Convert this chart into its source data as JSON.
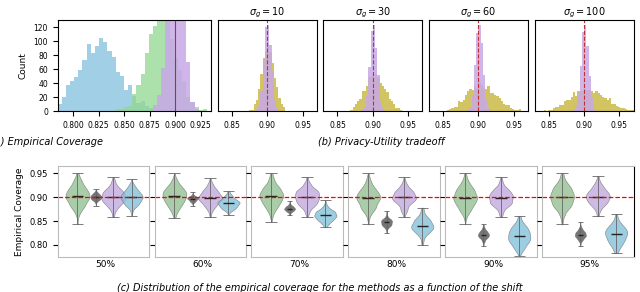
{
  "fig_width": 6.4,
  "fig_height": 2.92,
  "dpi": 100,
  "panel_a": {
    "ylabel": "Count",
    "xlim": [
      0.785,
      0.935
    ],
    "ylim": [
      0,
      130
    ],
    "yticks": [
      0,
      20,
      40,
      60,
      80,
      100,
      120
    ],
    "xticks": [
      0.8,
      0.825,
      0.85,
      0.875,
      0.9,
      0.925
    ],
    "blue_mean": 0.825,
    "blue_std": 0.02,
    "green_mean": 0.886,
    "green_std": 0.014,
    "purple_mean": 0.9,
    "purple_std": 0.007,
    "blue_color": "#89c4e0",
    "green_color": "#90d890",
    "purple_color": "#c8a8e8",
    "vline": 0.9,
    "vline_color": "#8b4040",
    "label_text": "(a) Empirical Coverage"
  },
  "panel_b": {
    "subplots": [
      {
        "sigma": "10",
        "title": "$\\sigma_g = 10$",
        "yellow_std": 0.008
      },
      {
        "sigma": "30",
        "title": "$\\sigma_g = 30$",
        "yellow_std": 0.013
      },
      {
        "sigma": "60",
        "title": "$\\sigma_g = 60$",
        "yellow_std": 0.018
      },
      {
        "sigma": "100",
        "title": "$\\sigma_g = 100$",
        "yellow_std": 0.022
      }
    ],
    "yellow_mean": 0.9,
    "purple_mean": 0.901,
    "purple_std": 0.005,
    "yellow_color": "#c8b840",
    "purple_color": "#c8a8e8",
    "xlim": [
      0.83,
      0.97
    ],
    "xticks": [
      0.85,
      0.9,
      0.95
    ],
    "vline": 0.9,
    "vline_color": "#c03030",
    "label_text": "(b) Privacy-Utility tradeoff"
  },
  "panel_c": {
    "title": "(c) Distribution of the empirical coverage for the methods as a function of the shift",
    "ylabel": "Empirical Coverage",
    "hline": 0.9,
    "ylim": [
      0.775,
      0.965
    ],
    "yticks": [
      0.8,
      0.85,
      0.9,
      0.95
    ],
    "shifts": [
      "50%",
      "60%",
      "70%",
      "80%",
      "90%",
      "95%"
    ],
    "violin_order": [
      "green",
      "black",
      "purple",
      "blue"
    ],
    "violin_data": {
      "50%": {
        "green": {
          "mean": 0.903,
          "std": 0.02,
          "lo": 0.843,
          "hi": 0.95
        },
        "black": {
          "mean": 0.901,
          "std": 0.006,
          "lo": 0.882,
          "hi": 0.922
        },
        "purple": {
          "mean": 0.9,
          "std": 0.016,
          "lo": 0.858,
          "hi": 0.942
        },
        "blue": {
          "mean": 0.9,
          "std": 0.014,
          "lo": 0.86,
          "hi": 0.938
        }
      },
      "60%": {
        "green": {
          "mean": 0.902,
          "std": 0.02,
          "lo": 0.843,
          "hi": 0.95
        },
        "black": {
          "mean": 0.897,
          "std": 0.005,
          "lo": 0.882,
          "hi": 0.912
        },
        "purple": {
          "mean": 0.9,
          "std": 0.016,
          "lo": 0.858,
          "hi": 0.942
        },
        "blue": {
          "mean": 0.887,
          "std": 0.01,
          "lo": 0.863,
          "hi": 0.912
        }
      },
      "70%": {
        "green": {
          "mean": 0.901,
          "std": 0.02,
          "lo": 0.843,
          "hi": 0.95
        },
        "black": {
          "mean": 0.876,
          "std": 0.005,
          "lo": 0.862,
          "hi": 0.893
        },
        "purple": {
          "mean": 0.9,
          "std": 0.016,
          "lo": 0.858,
          "hi": 0.942
        },
        "blue": {
          "mean": 0.862,
          "std": 0.011,
          "lo": 0.838,
          "hi": 0.893
        }
      },
      "80%": {
        "green": {
          "mean": 0.9,
          "std": 0.02,
          "lo": 0.843,
          "hi": 0.95
        },
        "black": {
          "mean": 0.847,
          "std": 0.007,
          "lo": 0.825,
          "hi": 0.87
        },
        "purple": {
          "mean": 0.9,
          "std": 0.016,
          "lo": 0.858,
          "hi": 0.942
        },
        "blue": {
          "mean": 0.84,
          "std": 0.015,
          "lo": 0.8,
          "hi": 0.878
        }
      },
      "90%": {
        "green": {
          "mean": 0.899,
          "std": 0.02,
          "lo": 0.843,
          "hi": 0.95
        },
        "black": {
          "mean": 0.822,
          "std": 0.008,
          "lo": 0.797,
          "hi": 0.85
        },
        "purple": {
          "mean": 0.9,
          "std": 0.016,
          "lo": 0.858,
          "hi": 0.942
        },
        "blue": {
          "mean": 0.818,
          "std": 0.018,
          "lo": 0.778,
          "hi": 0.86
        }
      },
      "95%": {
        "green": {
          "mean": 0.9,
          "std": 0.02,
          "lo": 0.843,
          "hi": 0.95
        },
        "black": {
          "mean": 0.822,
          "std": 0.008,
          "lo": 0.797,
          "hi": 0.85
        },
        "purple": {
          "mean": 0.902,
          "std": 0.016,
          "lo": 0.86,
          "hi": 0.944
        },
        "blue": {
          "mean": 0.823,
          "std": 0.018,
          "lo": 0.783,
          "hi": 0.865
        }
      }
    },
    "colors": {
      "green": "#90c090",
      "black": "#505050",
      "purple": "#c0a8e0",
      "blue": "#80c0d8"
    },
    "violin_widths": {
      "green": 0.3,
      "black": 0.14,
      "purple": 0.3,
      "blue": 0.28
    },
    "violin_positions": {
      "green": -0.35,
      "black": -0.12,
      "purple": 0.1,
      "blue": 0.33
    }
  }
}
